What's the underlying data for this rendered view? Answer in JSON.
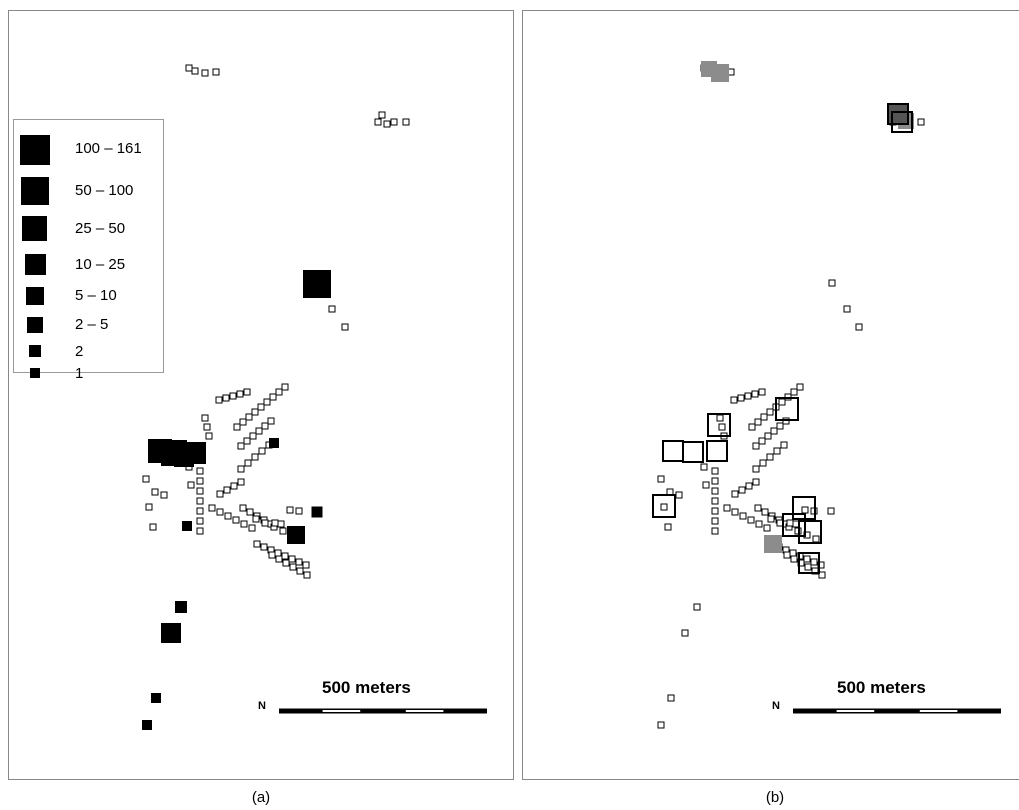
{
  "panels": [
    {
      "caption": "(a)",
      "scale_label": "500 meters",
      "north_label": "N"
    },
    {
      "caption": "(b)",
      "scale_label": "500 meters",
      "north_label": "N"
    }
  ],
  "legend": {
    "items": [
      {
        "label": "100 – 161"
      },
      {
        "label": "50 – 100"
      },
      {
        "label": "25 – 50"
      },
      {
        "label": "10 – 25"
      },
      {
        "label": "5 – 10"
      },
      {
        "label": "2 – 5"
      },
      {
        "label": "2"
      },
      {
        "label": "1"
      }
    ]
  },
  "colors": {
    "filled": "#000000",
    "gray": "#8c8c8c",
    "outline": "#000000",
    "background": "#ffffff",
    "frame": "#888888"
  }
}
